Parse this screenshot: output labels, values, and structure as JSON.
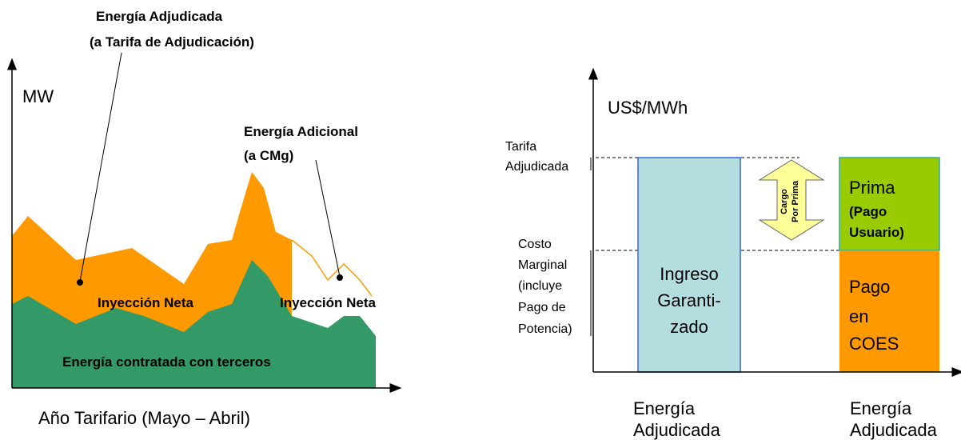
{
  "left": {
    "axis_y": "MW",
    "axis_x": "Año Tarifario (Mayo – Abril)",
    "callout_1": [
      "Energía Adjudicada",
      "(a Tarifa de Adjudicación)"
    ],
    "callout_2": [
      "Energía Adicional",
      "(a CMg)"
    ],
    "area_label_1": "Inyección Neta",
    "area_label_2": "Inyección Neta",
    "base_label": "Energía contratada con terceros"
  },
  "right": {
    "axis_y": "US$/MWh",
    "level_1": [
      "Tarifa",
      "Adjudicada"
    ],
    "level_2": [
      "Costo",
      "Marginal",
      "(incluye",
      "Pago de",
      "Potencia)"
    ],
    "bar_1": [
      "Ingreso",
      "Garanti-",
      "zado"
    ],
    "arrow_label": [
      "Cargo",
      "Por Prima"
    ],
    "bar_2_top": [
      "Prima",
      "(Pago",
      "Usuario)"
    ],
    "bar_2_bottom": [
      "Pago",
      "en",
      "COES"
    ],
    "bar_1_label": [
      "Energía",
      "Adjudicada"
    ],
    "bar_2_label": [
      "Energía",
      "Adjudicada"
    ]
  }
}
